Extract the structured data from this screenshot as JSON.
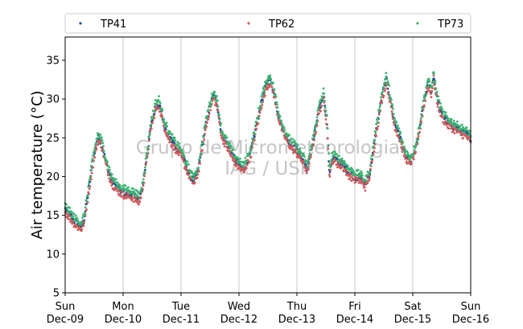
{
  "chart_data": {
    "type": "scatter",
    "ylabel": "Air temperature (°C)",
    "ylim": [
      5,
      38
    ],
    "yticks": [
      5,
      10,
      15,
      20,
      25,
      30,
      35
    ],
    "xlim": [
      0,
      7
    ],
    "xticks": [
      {
        "day": "Sun",
        "date": "Dec-09"
      },
      {
        "day": "Mon",
        "date": "Dec-10"
      },
      {
        "day": "Tue",
        "date": "Dec-11"
      },
      {
        "day": "Wed",
        "date": "Dec-12"
      },
      {
        "day": "Thu",
        "date": "Dec-13"
      },
      {
        "day": "Fri",
        "date": "Dec-14"
      },
      {
        "day": "Sat",
        "date": "Dec-15"
      },
      {
        "day": "Sun",
        "date": "Dec-16"
      }
    ],
    "grid": "vertical lines at day boundaries",
    "legend_position": "top",
    "watermark": [
      "Grupo de Micrometeorologia",
      "IAG / USP"
    ],
    "series": [
      {
        "name": "TP41",
        "color": "#1f4e8c",
        "offset": 0.0
      },
      {
        "name": "TP62",
        "color": "#d05a5a",
        "offset": -0.4
      },
      {
        "name": "TP73",
        "color": "#3cb371",
        "offset": 0.5
      }
    ],
    "x_unit": "days since Dec-09 00:00",
    "base_curve": [
      [
        0.0,
        15.8
      ],
      [
        0.1,
        14.8
      ],
      [
        0.2,
        13.9
      ],
      [
        0.28,
        13.6
      ],
      [
        0.33,
        14.5
      ],
      [
        0.4,
        18.0
      ],
      [
        0.48,
        22.0
      ],
      [
        0.56,
        25.0
      ],
      [
        0.62,
        24.5
      ],
      [
        0.7,
        22.0
      ],
      [
        0.8,
        19.5
      ],
      [
        0.9,
        18.5
      ],
      [
        1.0,
        18.0
      ],
      [
        1.1,
        17.8
      ],
      [
        1.2,
        17.5
      ],
      [
        1.28,
        17.0
      ],
      [
        1.33,
        18.5
      ],
      [
        1.4,
        22.0
      ],
      [
        1.48,
        26.5
      ],
      [
        1.56,
        29.0
      ],
      [
        1.62,
        29.5
      ],
      [
        1.7,
        27.0
      ],
      [
        1.8,
        25.0
      ],
      [
        1.9,
        24.0
      ],
      [
        2.0,
        23.0
      ],
      [
        2.08,
        21.5
      ],
      [
        2.18,
        19.8
      ],
      [
        2.24,
        19.5
      ],
      [
        2.3,
        21.0
      ],
      [
        2.4,
        25.5
      ],
      [
        2.48,
        28.5
      ],
      [
        2.56,
        30.5
      ],
      [
        2.62,
        29.5
      ],
      [
        2.7,
        25.5
      ],
      [
        2.8,
        24.0
      ],
      [
        2.9,
        22.5
      ],
      [
        3.0,
        21.5
      ],
      [
        3.08,
        21.0
      ],
      [
        3.2,
        23.0
      ],
      [
        3.3,
        26.5
      ],
      [
        3.4,
        30.0
      ],
      [
        3.48,
        32.0
      ],
      [
        3.54,
        32.5
      ],
      [
        3.6,
        31.0
      ],
      [
        3.68,
        28.0
      ],
      [
        3.76,
        26.0
      ],
      [
        3.86,
        24.5
      ],
      [
        3.98,
        23.5
      ],
      [
        4.08,
        22.5
      ],
      [
        4.18,
        21.0
      ],
      [
        4.28,
        24.5
      ],
      [
        4.38,
        28.5
      ],
      [
        4.46,
        30.5
      ],
      [
        4.52,
        27.0
      ],
      [
        4.56,
        20.5
      ],
      [
        4.62,
        22.5
      ],
      [
        4.7,
        22.0
      ],
      [
        4.8,
        21.5
      ],
      [
        4.9,
        20.5
      ],
      [
        5.0,
        20.0
      ],
      [
        5.1,
        19.8
      ],
      [
        5.18,
        19.0
      ],
      [
        5.26,
        20.5
      ],
      [
        5.36,
        25.5
      ],
      [
        5.46,
        30.0
      ],
      [
        5.54,
        32.5
      ],
      [
        5.6,
        30.5
      ],
      [
        5.68,
        27.0
      ],
      [
        5.76,
        25.5
      ],
      [
        5.86,
        23.0
      ],
      [
        5.94,
        22.0
      ],
      [
        6.0,
        22.5
      ],
      [
        6.08,
        24.5
      ],
      [
        6.18,
        29.0
      ],
      [
        6.26,
        32.0
      ],
      [
        6.32,
        31.0
      ],
      [
        6.36,
        33.0
      ],
      [
        6.42,
        30.0
      ],
      [
        6.5,
        28.0
      ],
      [
        6.6,
        27.0
      ],
      [
        6.7,
        26.5
      ],
      [
        6.8,
        26.0
      ],
      [
        6.92,
        25.5
      ],
      [
        7.0,
        25.0
      ]
    ]
  }
}
